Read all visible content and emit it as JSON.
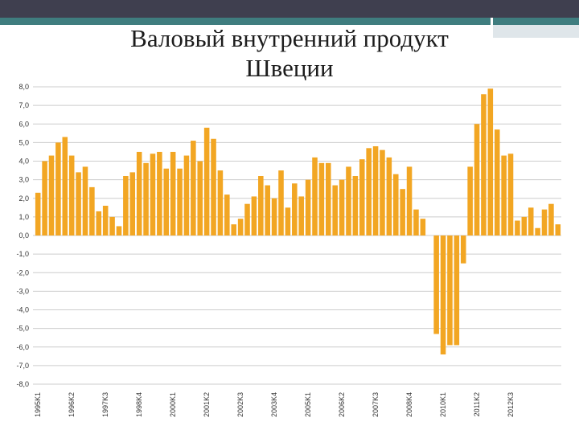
{
  "slide": {
    "title_line1": "Валовый внутренний продукт",
    "title_line2": "Швеции"
  },
  "colors": {
    "top_bar": "#3f3f4f",
    "accent": "#3f7d7f",
    "bar": "#f2a623",
    "chart_background": "#ffffff",
    "grid": "#cccccc",
    "text": "#1c1c1c"
  },
  "chart_data": {
    "type": "bar",
    "title": "",
    "xlabel": "",
    "ylabel": "",
    "ylim": [
      -8,
      8
    ],
    "grid": true,
    "yticks": [
      "8,0",
      "7,0",
      "6,0",
      "5,0",
      "4,0",
      "3,0",
      "2,0",
      "1,0",
      "0,0",
      "-1,0",
      "-2,0",
      "-3,0",
      "-4,0",
      "-5,0",
      "-6,0",
      "-7,0",
      "-8,0"
    ],
    "x_tick_labels": [
      "1995K1",
      "1996K2",
      "1997K3",
      "1998K4",
      "2000K1",
      "2001K2",
      "2002K3",
      "2003K4",
      "2005K1",
      "2006K2",
      "2007K3",
      "2008K4",
      "2010K1",
      "2011K2",
      "2012K3"
    ],
    "x_tick_every": 5,
    "values": [
      2.3,
      4.0,
      4.3,
      5.0,
      5.3,
      4.3,
      3.4,
      3.7,
      2.6,
      1.3,
      1.6,
      1.0,
      0.5,
      3.2,
      3.4,
      4.5,
      3.9,
      4.4,
      4.5,
      3.6,
      4.5,
      3.6,
      4.3,
      5.1,
      4.0,
      5.8,
      5.2,
      3.5,
      2.2,
      0.6,
      0.9,
      1.7,
      2.1,
      3.2,
      2.7,
      2.0,
      3.5,
      1.5,
      2.8,
      2.1,
      3.0,
      4.2,
      3.9,
      3.9,
      2.7,
      3.0,
      3.7,
      3.2,
      4.1,
      4.7,
      4.8,
      4.6,
      4.2,
      3.3,
      2.5,
      3.7,
      1.4,
      0.9,
      0.0,
      -5.3,
      -6.4,
      -5.9,
      -5.9,
      -1.5,
      3.7,
      6.0,
      7.6,
      7.9,
      5.7,
      4.3,
      4.4,
      0.8,
      1.0,
      1.5,
      0.4,
      1.4,
      1.7,
      0.6
    ]
  }
}
